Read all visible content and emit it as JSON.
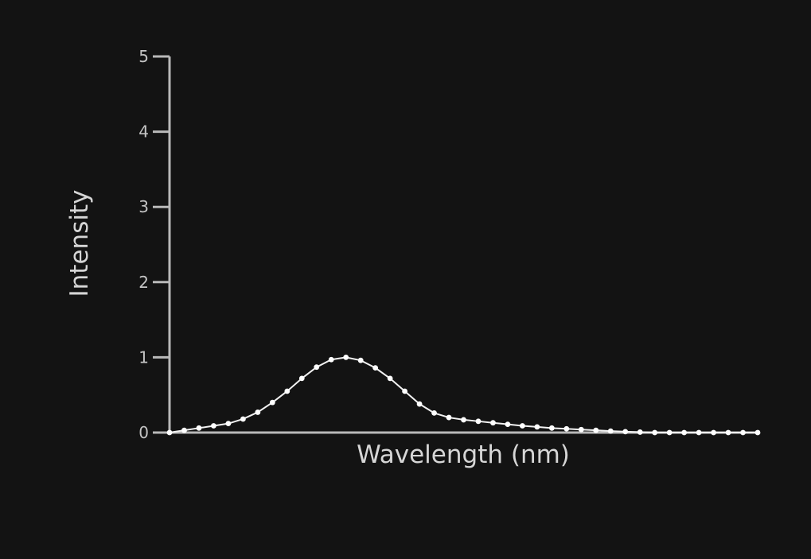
{
  "chart_data": {
    "type": "scatter",
    "title": "",
    "xlabel": "Wavelength (nm)",
    "ylabel": "Intensity",
    "ylim": [
      0,
      5
    ],
    "yticks": [
      "0",
      "1",
      "2",
      "3",
      "4",
      "5"
    ],
    "xticks": [],
    "grid": false,
    "legend": "none",
    "series": [
      {
        "color": "#ffffff",
        "x": [
          0,
          0.025,
          0.05,
          0.075,
          0.1,
          0.125,
          0.15,
          0.175,
          0.2,
          0.225,
          0.25,
          0.275,
          0.3,
          0.325,
          0.35,
          0.375,
          0.4,
          0.425,
          0.45,
          0.475,
          0.5,
          0.525,
          0.55,
          0.575,
          0.6,
          0.625,
          0.65,
          0.675,
          0.7,
          0.725,
          0.75,
          0.775,
          0.8,
          0.825,
          0.85,
          0.875,
          0.9,
          0.925,
          0.95,
          0.975,
          1.0
        ],
        "y": [
          0.0,
          0.03,
          0.06,
          0.09,
          0.12,
          0.18,
          0.27,
          0.4,
          0.55,
          0.72,
          0.87,
          0.97,
          1.0,
          0.96,
          0.86,
          0.72,
          0.55,
          0.38,
          0.26,
          0.2,
          0.17,
          0.15,
          0.13,
          0.11,
          0.09,
          0.075,
          0.06,
          0.05,
          0.04,
          0.03,
          0.02,
          0.012,
          0.006,
          0.0,
          0.0,
          0.0,
          0.0,
          0.0,
          0.0,
          0.0,
          0.0
        ]
      }
    ]
  }
}
